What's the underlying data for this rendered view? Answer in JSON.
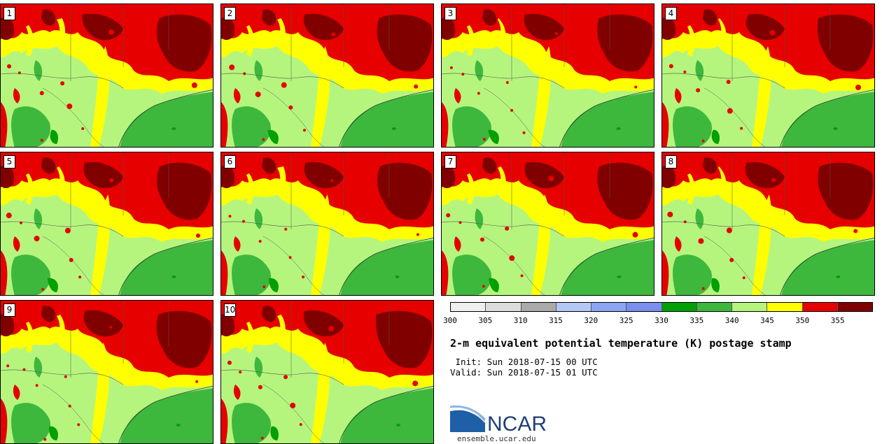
{
  "panels": [
    "1",
    "2",
    "3",
    "4",
    "5",
    "6",
    "7",
    "8",
    "9",
    "10"
  ],
  "colorbar": {
    "colors": [
      "#efefef",
      "#dcdcdc",
      "#aaaaaa",
      "#b4c8f8",
      "#8da6f4",
      "#7b8ff0",
      "#03a003",
      "#3db83d",
      "#b5f57d",
      "#ffff00",
      "#e60000",
      "#800000"
    ],
    "tick_labels": [
      "300",
      "305",
      "310",
      "315",
      "320",
      "325",
      "330",
      "335",
      "340",
      "345",
      "350",
      "355"
    ]
  },
  "title": "2-m equivalent potential temperature (K) postage stamp",
  "init": " Init: Sun 2018-07-15 00 UTC",
  "valid": "Valid: Sun 2018-07-15 01 UTC",
  "logo_text": "NCAR",
  "site": "ensemble.ucar.edu"
}
